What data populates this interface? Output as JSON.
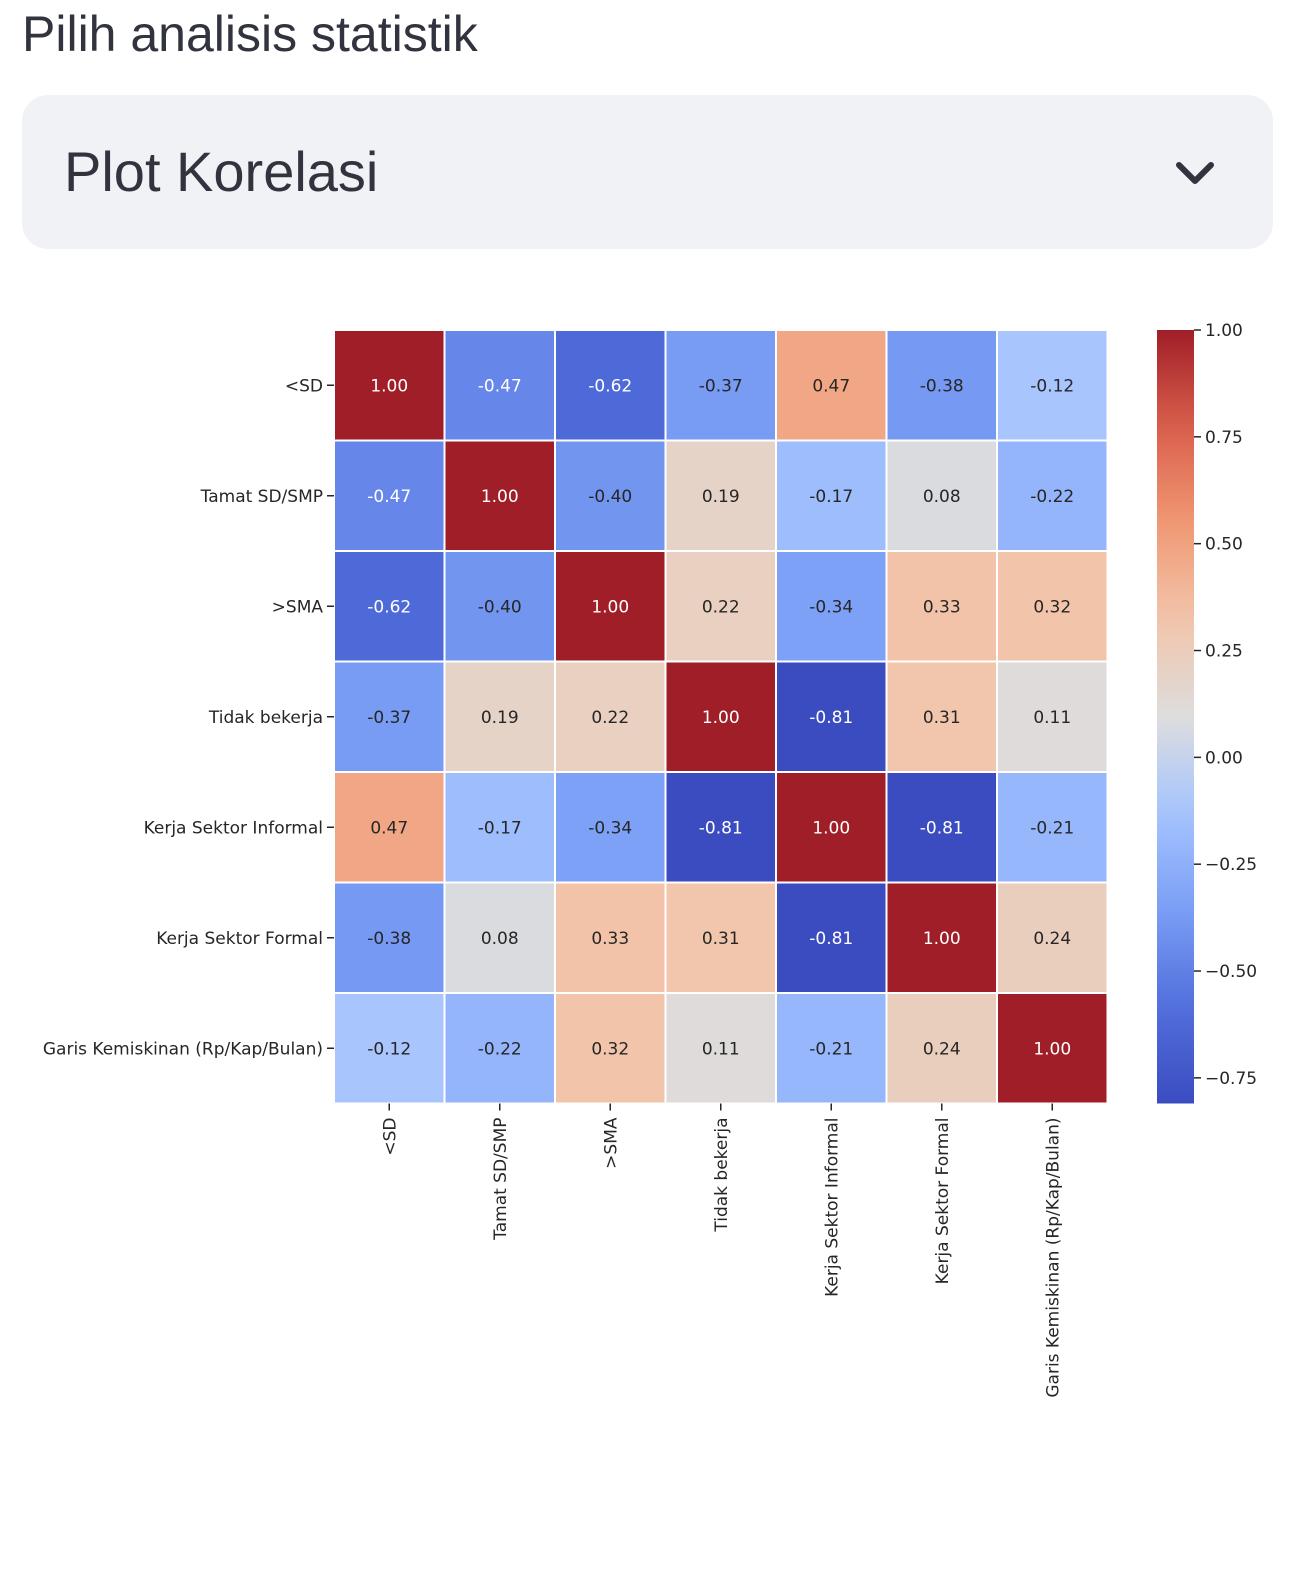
{
  "select": {
    "label": "Pilih analisis statistik",
    "value": "Plot Korelasi",
    "chevron_icon": "chevron-down-icon"
  },
  "colors": {
    "select_bg": "#f0f2f6",
    "text": "#31333f",
    "cmap_low": "#3b4cc0",
    "cmap_mid": "#dddddd",
    "cmap_high": "#b40426",
    "annotation_light": "#ffffff",
    "annotation_dark": "#262626"
  },
  "chart_data": {
    "type": "heatmap",
    "title": "",
    "labels": [
      "<SD",
      "Tamat SD/SMP",
      ">SMA",
      "Tidak bekerja",
      "Kerja Sektor Informal",
      "Kerja Sektor Formal",
      "Garis Kemiskinan (Rp/Kap/Bulan)"
    ],
    "matrix": [
      [
        1.0,
        -0.47,
        -0.62,
        -0.37,
        0.47,
        -0.38,
        -0.12
      ],
      [
        -0.47,
        1.0,
        -0.4,
        0.19,
        -0.17,
        0.08,
        -0.22
      ],
      [
        -0.62,
        -0.4,
        1.0,
        0.22,
        -0.34,
        0.33,
        0.32
      ],
      [
        -0.37,
        0.19,
        0.22,
        1.0,
        -0.81,
        0.31,
        0.11
      ],
      [
        0.47,
        -0.17,
        -0.34,
        -0.81,
        1.0,
        -0.81,
        -0.21
      ],
      [
        -0.38,
        0.08,
        0.33,
        0.31,
        -0.81,
        1.0,
        0.24
      ],
      [
        -0.12,
        -0.22,
        0.32,
        0.11,
        -0.21,
        0.24,
        1.0
      ]
    ],
    "value_format": "2 decimals",
    "colormap": "coolwarm",
    "vmin": -0.81,
    "vmax": 1.0,
    "colorbar_ticks": [
      "1.00",
      "0.75",
      "0.50",
      "0.25",
      "0.00",
      "−0.25",
      "−0.50",
      "−0.75"
    ],
    "colorbar_tick_values": [
      1.0,
      0.75,
      0.5,
      0.25,
      0.0,
      -0.25,
      -0.5,
      -0.75
    ],
    "xlabel": "",
    "ylabel": ""
  }
}
